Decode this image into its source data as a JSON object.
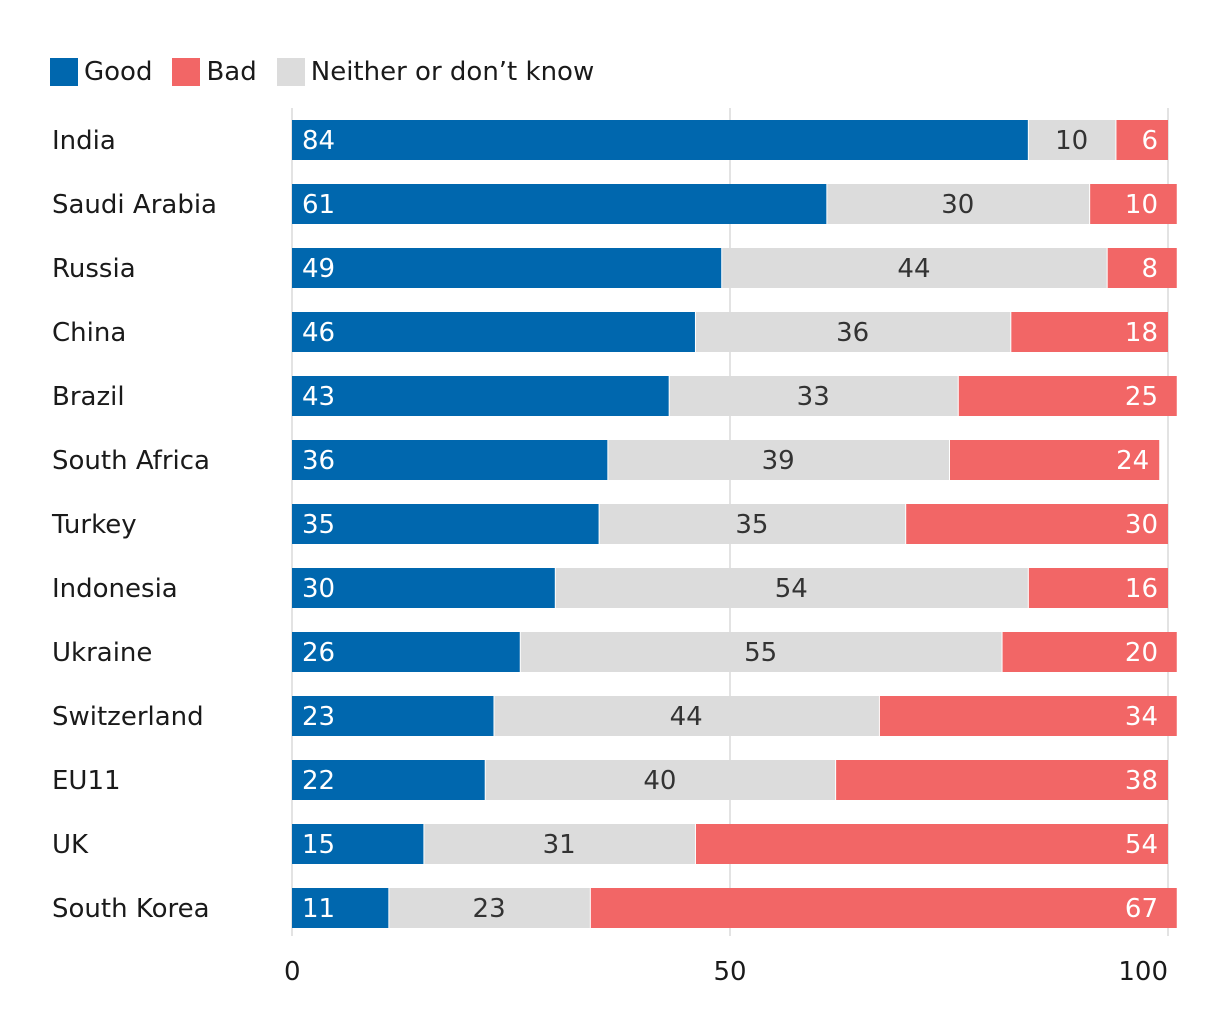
{
  "chart_data": {
    "type": "bar",
    "orientation": "horizontal",
    "stacked": true,
    "categories": [
      "India",
      "Saudi Arabia",
      "Russia",
      "China",
      "Brazil",
      "South Africa",
      "Turkey",
      "Indonesia",
      "Ukraine",
      "Switzerland",
      "EU11",
      "UK",
      "South Korea"
    ],
    "series": [
      {
        "name": "Good",
        "color": "#0067ae",
        "values": [
          84,
          61,
          49,
          46,
          43,
          36,
          35,
          30,
          26,
          23,
          22,
          15,
          11
        ]
      },
      {
        "name": "Neither or don’t know",
        "color": "#dcdcdc",
        "values": [
          10,
          30,
          44,
          36,
          33,
          39,
          35,
          54,
          55,
          44,
          40,
          31,
          23
        ]
      },
      {
        "name": "Bad",
        "color": "#f26666",
        "values": [
          6,
          10,
          8,
          18,
          25,
          24,
          30,
          16,
          20,
          34,
          38,
          54,
          67
        ]
      }
    ],
    "legend": [
      {
        "label": "Good",
        "color": "#0067ae"
      },
      {
        "label": "Bad",
        "color": "#f26666"
      },
      {
        "label": "Neither or don’t know",
        "color": "#dcdcdc"
      }
    ],
    "xlim": [
      0,
      100
    ],
    "xticks": [
      0,
      50,
      100
    ],
    "grid": true,
    "legend_position": "top-left"
  }
}
